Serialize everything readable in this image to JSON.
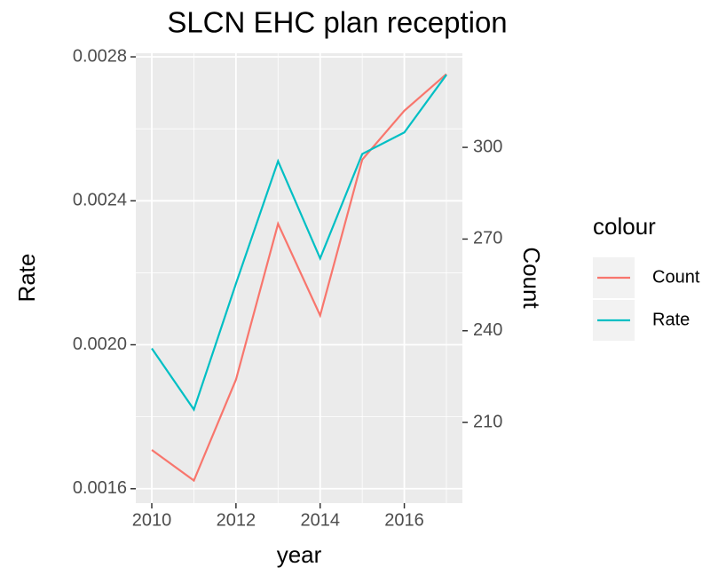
{
  "chart_data": {
    "type": "line",
    "title": "SLCN EHC plan reception",
    "x_label": "year",
    "y_label": "Rate",
    "y2_label": "Count",
    "x": [
      2010,
      2011,
      2012,
      2013,
      2014,
      2015,
      2016,
      2017
    ],
    "series": [
      {
        "name": "Count",
        "color": "#F8766D",
        "axis": "y2",
        "values": [
          201,
          191,
          224,
          275,
          245,
          296,
          312,
          324
        ]
      },
      {
        "name": "Rate",
        "color": "#00BFC4",
        "values": [
          0.00199,
          0.00182,
          0.00217,
          0.00251,
          0.00224,
          0.00253,
          0.00259,
          0.00275
        ]
      }
    ],
    "xlim": [
      2009.62,
      2017.38
    ],
    "xticks": [
      2010,
      2012,
      2014,
      2016
    ],
    "ylim": [
      0.00156,
      0.00281
    ],
    "yticks": [
      0.0016,
      {
        "value": 0.002,
        "label": "0.0020"
      },
      0.0024,
      0.0028
    ],
    "y2lim": [
      183.6,
      330.8
    ],
    "y2ticks": [
      210,
      240,
      270,
      300
    ],
    "x_minor_grid": [
      2011,
      2013,
      2015,
      2017
    ],
    "y_minor_grid": [
      0.0018,
      0.0022,
      0.0026
    ],
    "grid": true,
    "legend_title": "colour",
    "legend_position": "right"
  }
}
